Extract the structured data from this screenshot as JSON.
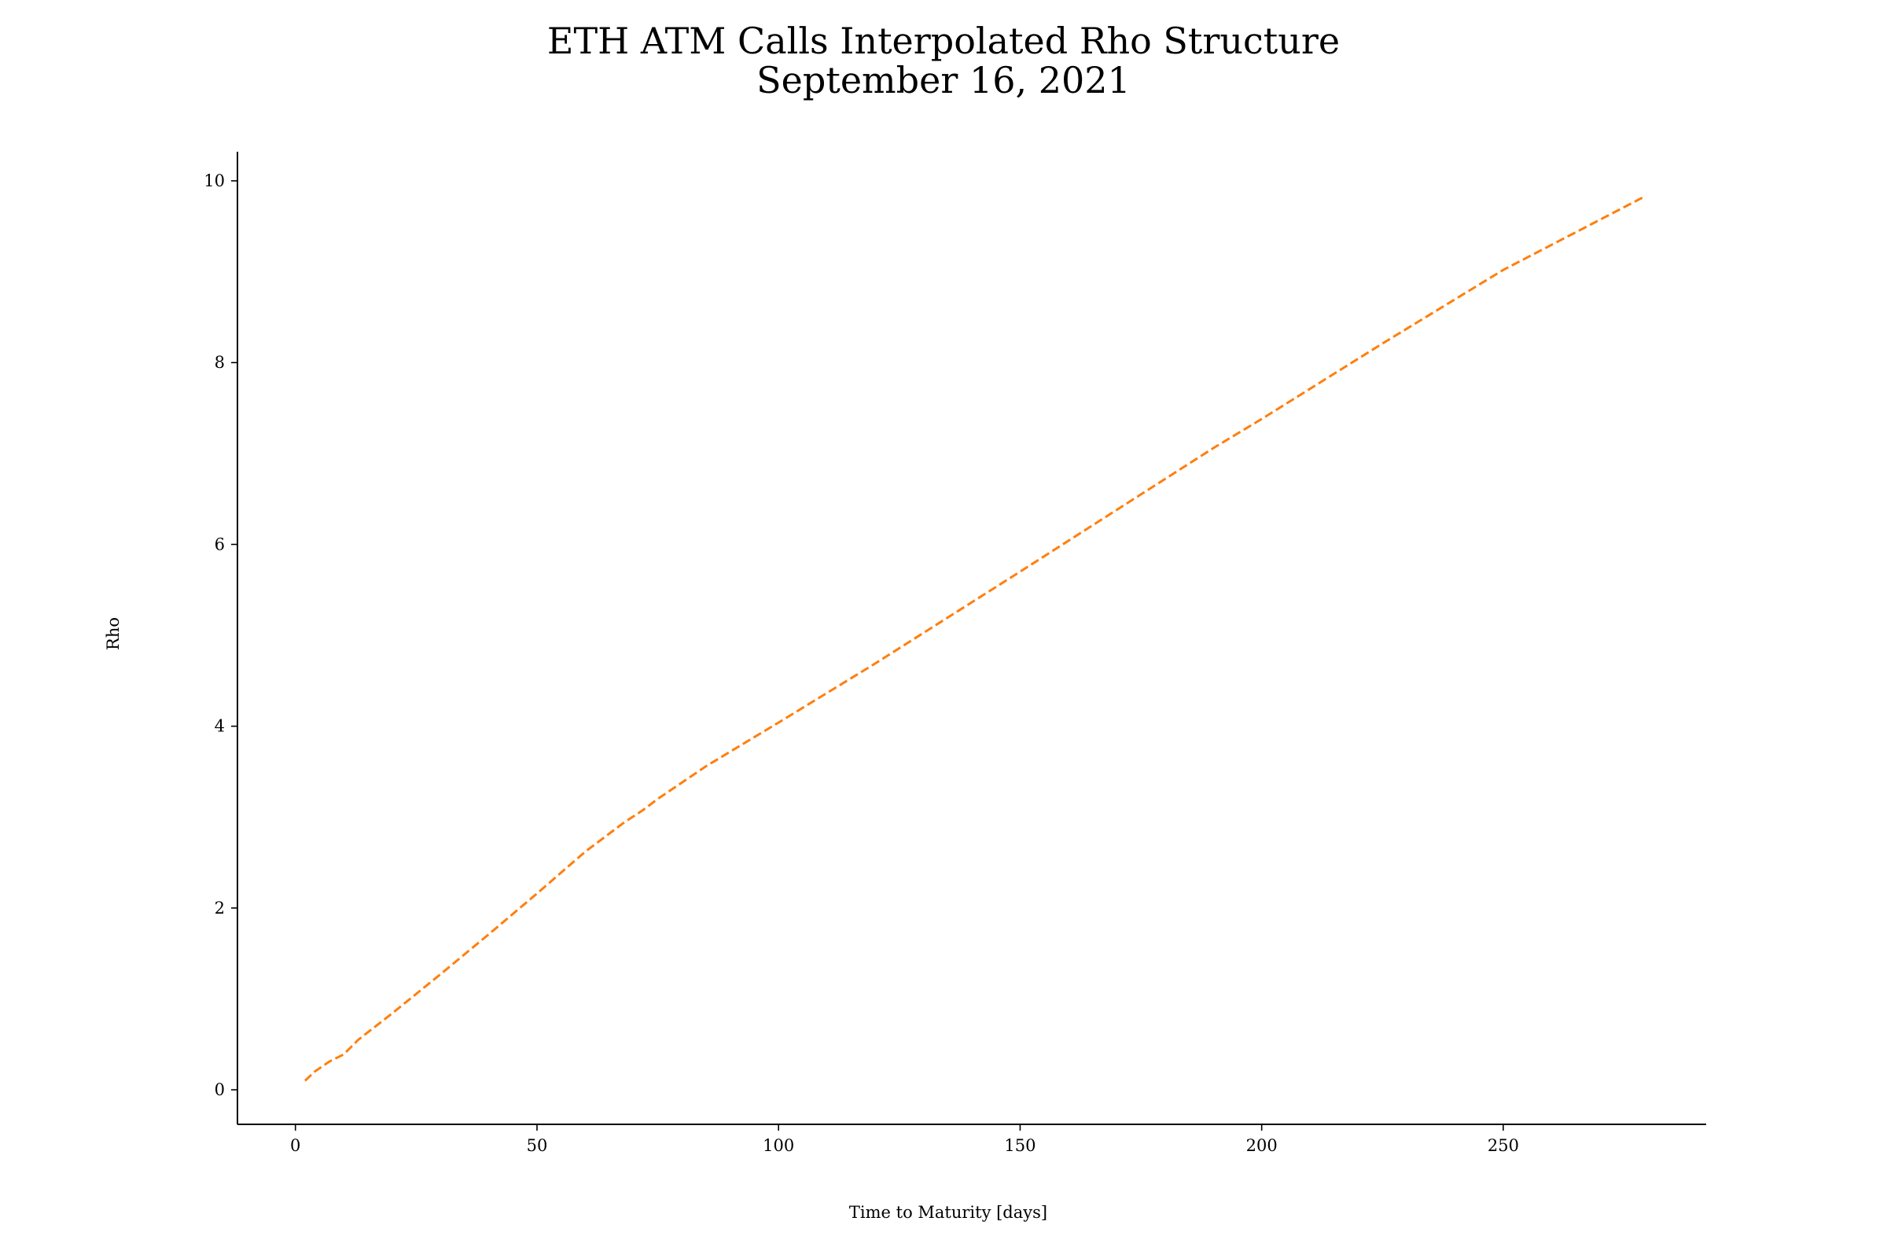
{
  "chart_data": {
    "type": "line",
    "title": "ETH ATM Calls Interpolated Rho Structure",
    "subtitle": "September 16, 2021",
    "xlabel": "Time to Maturity [days]",
    "ylabel": "Rho",
    "xlim": [
      -12,
      292
    ],
    "ylim": [
      -0.38,
      10.32
    ],
    "xticks": [
      0,
      50,
      100,
      150,
      200,
      250
    ],
    "yticks": [
      0,
      2,
      4,
      6,
      8,
      10
    ],
    "grid": false,
    "legend": "none",
    "colors": {
      "series": "#ff7f0e",
      "axes": "#000000",
      "background": "#ffffff"
    },
    "series": [
      {
        "x": [
          2,
          4,
          7,
          10,
          13,
          20,
          30,
          40,
          50,
          60,
          68,
          72,
          75,
          85,
          100,
          120,
          150,
          170,
          190,
          200,
          225,
          250,
          279
        ],
        "values": [
          0.1,
          0.2,
          0.31,
          0.39,
          0.55,
          0.84,
          1.27,
          1.71,
          2.16,
          2.62,
          2.94,
          3.08,
          3.2,
          3.56,
          4.04,
          4.69,
          5.7,
          6.38,
          7.06,
          7.38,
          8.21,
          9.02,
          9.82
        ]
      }
    ]
  }
}
